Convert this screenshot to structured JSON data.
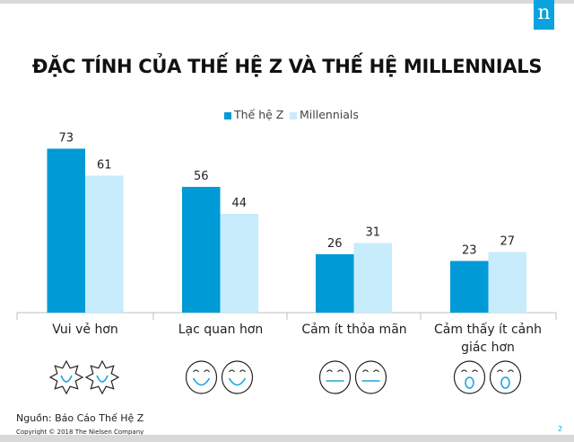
{
  "logo_text": "n",
  "chart_data": {
    "type": "bar",
    "title": "ĐẶC TÍNH CỦA THẾ HỆ Z VÀ THẾ HỆ MILLENNIALS",
    "categories": [
      "Vui vẻ hơn",
      "Lạc quan hơn",
      "Cảm ít thỏa mãn",
      "Cảm thấy ít cảnh giác hơn"
    ],
    "series": [
      {
        "name": "Thế hệ Z",
        "values": [
          73,
          56,
          26,
          23
        ],
        "color": "#009ad6"
      },
      {
        "name": "Millennials",
        "values": [
          61,
          44,
          31,
          27
        ],
        "color": "#c7ecfc"
      }
    ],
    "ylim": [
      0,
      80
    ],
    "grid": false,
    "legend": "top-center",
    "data_labels": true,
    "category_icons": [
      "smiling-sun-icon",
      "smiling-face-icon",
      "neutral-face-icon",
      "surprised-face-icon"
    ]
  },
  "footer": {
    "source": "Nguồn: Báo Cáo Thế Hệ Z",
    "copyright": "Copyright © 2018 The Nielsen Company",
    "page_number": "2"
  }
}
